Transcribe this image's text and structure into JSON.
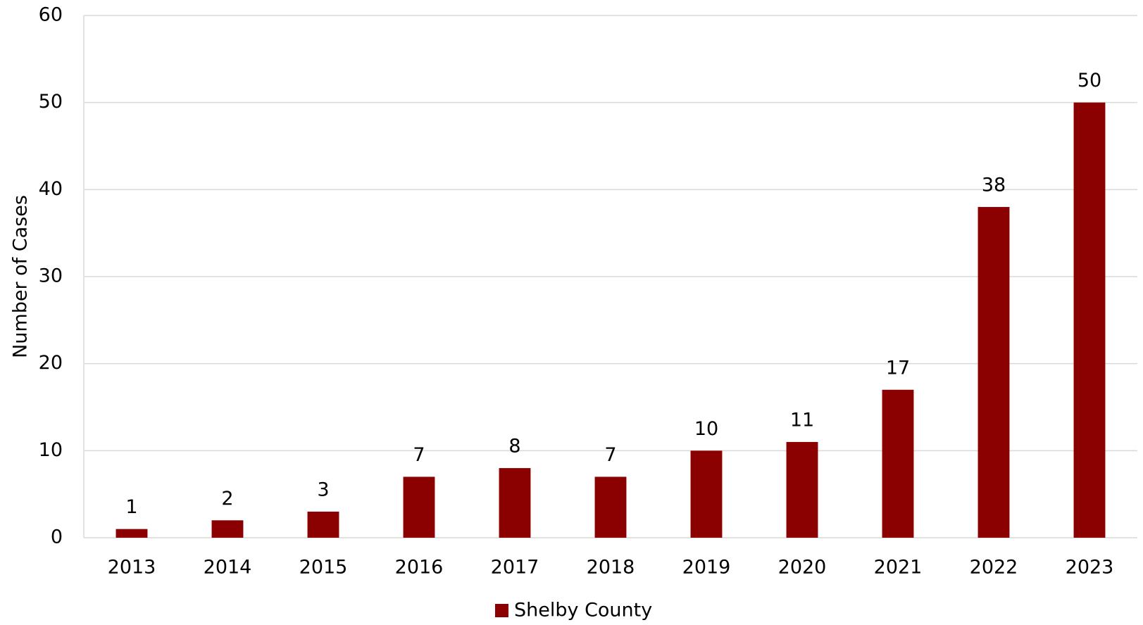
{
  "chart_data": {
    "type": "bar",
    "y_label": "Number of Cases",
    "categories": [
      "2013",
      "2014",
      "2015",
      "2016",
      "2017",
      "2018",
      "2019",
      "2020",
      "2021",
      "2022",
      "2023"
    ],
    "series": [
      {
        "name": "Shelby County",
        "color": "#8b0000",
        "values": [
          1,
          2,
          3,
          7,
          8,
          7,
          10,
          11,
          17,
          38,
          50
        ]
      }
    ],
    "ylim": [
      0,
      60
    ],
    "yticks": [
      0,
      10,
      20,
      30,
      40,
      50,
      60
    ],
    "grid": true,
    "legend": "bottom"
  }
}
